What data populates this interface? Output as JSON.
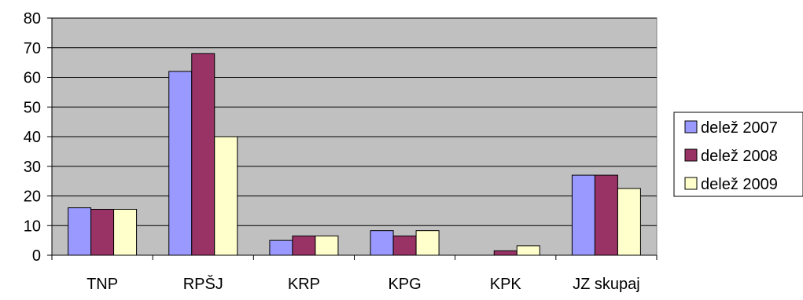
{
  "chart_data": {
    "type": "bar",
    "title": "",
    "xlabel": "",
    "ylabel": "",
    "ylim": [
      0,
      80
    ],
    "yticks": [
      0,
      10,
      20,
      30,
      40,
      50,
      60,
      70,
      80
    ],
    "grid": true,
    "legend_position": "right",
    "categories": [
      "TNP",
      "RPŠJ",
      "KRP",
      "KPG",
      "KPK",
      "JZ skupaj"
    ],
    "series": [
      {
        "name": "delež 2007",
        "color": "#9999ff",
        "values": [
          16,
          62,
          5,
          8.3,
          0,
          27
        ]
      },
      {
        "name": "delež 2008",
        "color": "#993366",
        "values": [
          15.5,
          68,
          6.5,
          6.5,
          1.5,
          27
        ]
      },
      {
        "name": "delež 2009",
        "color": "#ffffcc",
        "values": [
          15.5,
          40,
          6.5,
          8.3,
          3.2,
          22.5
        ]
      }
    ],
    "plot_background": "#c0c0c0"
  }
}
